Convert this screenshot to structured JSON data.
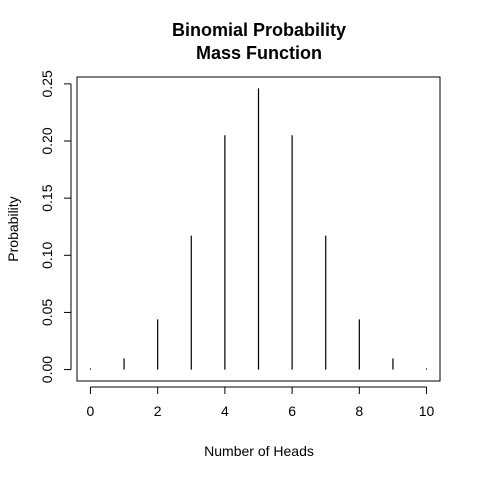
{
  "chart_data": {
    "type": "bar",
    "title_line1": "Binomial Probability",
    "title_line2": "Mass Function",
    "xlabel": "Number of Heads",
    "ylabel": "Probability",
    "x": [
      0,
      1,
      2,
      3,
      4,
      5,
      6,
      7,
      8,
      9,
      10
    ],
    "values": [
      0.0009765625,
      0.009765625,
      0.0439453125,
      0.1171875,
      0.205078125,
      0.24609375,
      0.205078125,
      0.1171875,
      0.0439453125,
      0.009765625,
      0.0009765625
    ],
    "xlim": [
      -0.4,
      10.4
    ],
    "ylim": [
      -0.01,
      0.256
    ],
    "x_ticks": [
      0,
      2,
      4,
      6,
      8,
      10
    ],
    "x_tick_labels": [
      "0",
      "2",
      "4",
      "6",
      "8",
      "10"
    ],
    "y_ticks": [
      0.0,
      0.05,
      0.1,
      0.15,
      0.2,
      0.25
    ],
    "y_tick_labels": [
      "0.00",
      "0.05",
      "0.10",
      "0.15",
      "0.20",
      "0.25"
    ],
    "grid": false,
    "legend": "none",
    "bar_color": "#000000"
  }
}
